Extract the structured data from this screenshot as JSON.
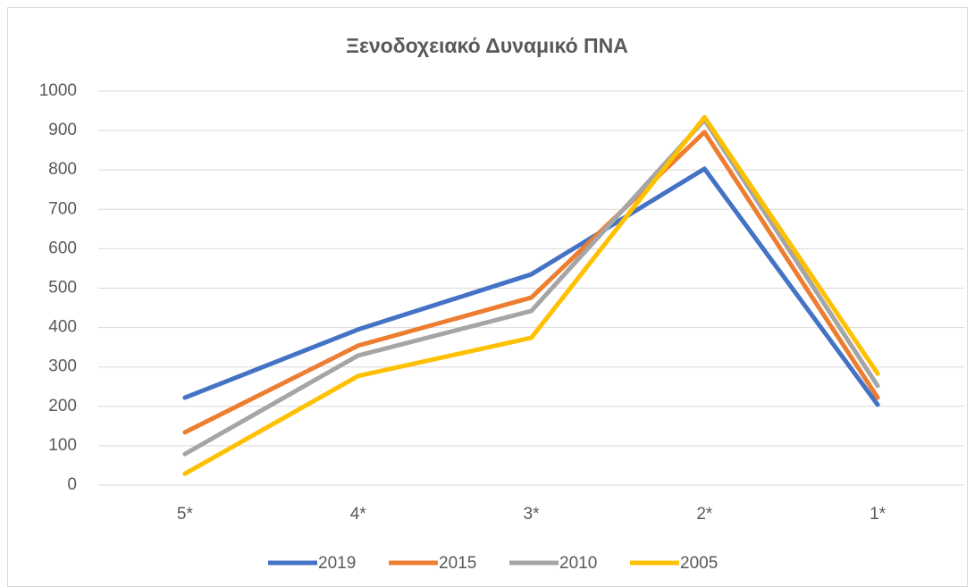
{
  "chart_data": {
    "type": "line",
    "title": "Ξενοδοχειακό Δυναμικό ΠΝΑ",
    "categories": [
      "5*",
      "4*",
      "3*",
      "2*",
      "1*"
    ],
    "series": [
      {
        "name": "2019",
        "color": "#4472c4",
        "values": [
          222,
          395,
          535,
          803,
          204
        ]
      },
      {
        "name": "2015",
        "color": "#ed7d31",
        "values": [
          134,
          354,
          476,
          896,
          222
        ]
      },
      {
        "name": "2010",
        "color": "#a5a5a5",
        "values": [
          79,
          329,
          442,
          927,
          252
        ]
      },
      {
        "name": "2005",
        "color": "#ffc000",
        "values": [
          29,
          277,
          374,
          934,
          283
        ]
      }
    ],
    "ylim": [
      0,
      1000
    ],
    "yticks": [
      0,
      100,
      200,
      300,
      400,
      500,
      600,
      700,
      800,
      900,
      1000
    ],
    "grid": true,
    "legend": "bottom"
  }
}
